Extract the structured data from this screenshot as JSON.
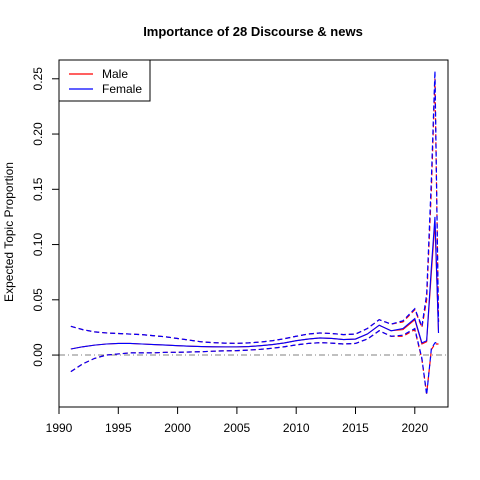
{
  "chart_data": {
    "type": "line",
    "title": "Importance of 28 Discourse & news",
    "xlabel": "",
    "ylabel": "Expected Topic Proportion",
    "xlim": [
      1990,
      2022.8
    ],
    "ylim": [
      -0.047,
      0.267
    ],
    "xticks": [
      1990,
      1995,
      2000,
      2005,
      2010,
      2015,
      2020
    ],
    "yticks": [
      0.0,
      0.05,
      0.1,
      0.15,
      0.2,
      0.25
    ],
    "ytick_labels": [
      "0.00",
      "0.05",
      "0.10",
      "0.15",
      "0.20",
      "0.25"
    ],
    "reference_line": 0,
    "legend": {
      "position": "top-left",
      "entries": [
        "Male",
        "Female"
      ]
    },
    "x": [
      1991,
      1992,
      1993,
      1994,
      1995,
      1996,
      1997,
      1998,
      1999,
      2000,
      2001,
      2002,
      2003,
      2004,
      2005,
      2006,
      2007,
      2008,
      2009,
      2010,
      2011,
      2012,
      2013,
      2014,
      2015,
      2016,
      2017,
      2018,
      2019,
      2020,
      2020.6,
      2021,
      2021.4,
      2021.7,
      2022
    ],
    "series": [
      {
        "name": "Male",
        "color": "#ff0000",
        "mean": [
          0.0055,
          0.0075,
          0.009,
          0.01,
          0.0105,
          0.0105,
          0.01,
          0.0095,
          0.009,
          0.0085,
          0.008,
          0.0077,
          0.0075,
          0.0074,
          0.0074,
          0.0077,
          0.0085,
          0.0095,
          0.011,
          0.013,
          0.0145,
          0.0155,
          0.015,
          0.014,
          0.0145,
          0.019,
          0.027,
          0.022,
          0.023,
          0.032,
          0.01,
          0.012,
          0.075,
          0.12,
          0.02
        ],
        "upper": [
          0.026,
          0.023,
          0.021,
          0.02,
          0.0195,
          0.019,
          0.0185,
          0.0175,
          0.0165,
          0.015,
          0.0135,
          0.012,
          0.0112,
          0.0108,
          0.0106,
          0.011,
          0.0118,
          0.013,
          0.0148,
          0.017,
          0.019,
          0.02,
          0.0195,
          0.0185,
          0.019,
          0.024,
          0.032,
          0.028,
          0.03,
          0.041,
          0.025,
          0.05,
          0.15,
          0.25,
          0.03
        ],
        "lower": [
          -0.015,
          -0.008,
          -0.003,
          0.0,
          0.001,
          0.002,
          0.002,
          0.002,
          0.0025,
          0.0025,
          0.0028,
          0.003,
          0.0035,
          0.0038,
          0.004,
          0.0045,
          0.0052,
          0.0062,
          0.0075,
          0.0092,
          0.0105,
          0.0112,
          0.0108,
          0.01,
          0.0105,
          0.0145,
          0.022,
          0.017,
          0.017,
          0.023,
          -0.004,
          -0.035,
          0.005,
          0.01,
          0.01
        ]
      },
      {
        "name": "Female",
        "color": "#0000ff",
        "mean": [
          0.0055,
          0.0075,
          0.009,
          0.01,
          0.0105,
          0.0105,
          0.01,
          0.0095,
          0.009,
          0.0085,
          0.008,
          0.0077,
          0.0075,
          0.0074,
          0.0074,
          0.0077,
          0.0085,
          0.0095,
          0.011,
          0.013,
          0.0145,
          0.0155,
          0.015,
          0.014,
          0.0145,
          0.019,
          0.027,
          0.022,
          0.024,
          0.033,
          0.011,
          0.013,
          0.08,
          0.125,
          0.02
        ],
        "upper": [
          0.026,
          0.023,
          0.021,
          0.02,
          0.0195,
          0.019,
          0.0185,
          0.0175,
          0.0165,
          0.015,
          0.0135,
          0.012,
          0.0112,
          0.0108,
          0.0106,
          0.011,
          0.0118,
          0.013,
          0.0148,
          0.017,
          0.019,
          0.02,
          0.0195,
          0.0185,
          0.019,
          0.024,
          0.032,
          0.028,
          0.031,
          0.042,
          0.026,
          0.055,
          0.16,
          0.257,
          0.03
        ],
        "lower": [
          -0.015,
          -0.008,
          -0.003,
          0.0,
          0.001,
          0.002,
          0.002,
          0.002,
          0.0025,
          0.0025,
          0.0028,
          0.003,
          0.0035,
          0.0038,
          0.004,
          0.0045,
          0.0052,
          0.0062,
          0.0075,
          0.0092,
          0.0105,
          0.0112,
          0.0108,
          0.01,
          0.0105,
          0.0145,
          0.022,
          0.017,
          0.018,
          0.024,
          -0.003,
          -0.036,
          0.006,
          0.011,
          0.012
        ]
      }
    ]
  }
}
